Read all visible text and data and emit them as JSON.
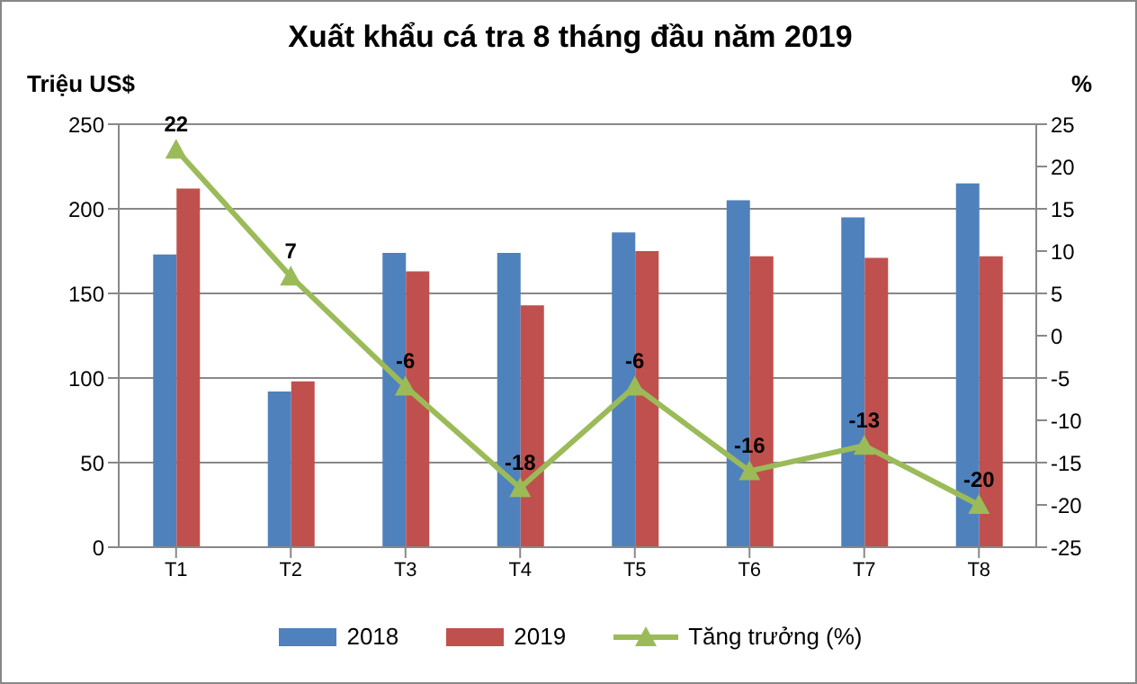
{
  "chart_data": {
    "type": "bar",
    "title": "Xuất khẩu cá tra 8 tháng đầu năm 2019",
    "ylabel": "Triệu US$",
    "y2label": "%",
    "categories": [
      "T1",
      "T2",
      "T3",
      "T4",
      "T5",
      "T6",
      "T7",
      "T8"
    ],
    "series": [
      {
        "name": "2018",
        "color": "#4f81bd",
        "values": [
          173,
          92,
          174,
          174,
          186,
          205,
          195,
          215
        ]
      },
      {
        "name": "2019",
        "color": "#c0504d",
        "values": [
          212,
          98,
          163,
          143,
          175,
          172,
          171,
          172
        ]
      },
      {
        "name": "Tăng trưởng (%)",
        "type": "line",
        "axis": "y2",
        "color": "#9bbb59",
        "marker": "triangle",
        "data_labels": true,
        "values": [
          22,
          7,
          -6,
          -18,
          -6,
          -16,
          -13,
          -20
        ]
      }
    ],
    "ylim": [
      0,
      250
    ],
    "yticks": [
      0,
      50,
      100,
      150,
      200,
      250
    ],
    "y2lim": [
      -25,
      25
    ],
    "y2ticks": [
      -25,
      -20,
      -15,
      -10,
      -5,
      0,
      5,
      10,
      15,
      20,
      25
    ],
    "grid": "y",
    "legend": "bottom"
  }
}
